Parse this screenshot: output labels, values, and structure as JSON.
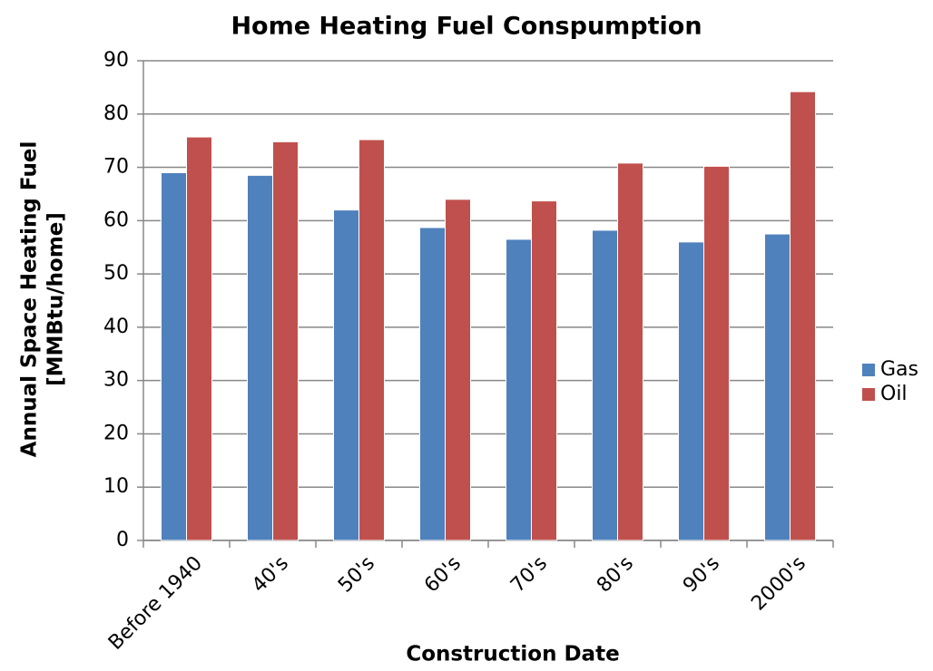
{
  "chart_data": {
    "type": "bar",
    "title": "Home Heating Fuel Conspumption",
    "xlabel": "Construction Date",
    "ylabel": [
      "Annual Space Heating Fuel",
      "[MMBtu/home]"
    ],
    "categories": [
      "Before 1940",
      "40's",
      "50's",
      "60's",
      "70's",
      "80's",
      "90's",
      "2000's"
    ],
    "series": [
      {
        "name": "Gas",
        "color": "#4f81bd",
        "values": [
          69,
          68.5,
          62,
          58.7,
          56.5,
          58.2,
          56,
          57.5
        ]
      },
      {
        "name": "Oil",
        "color": "#c0504d",
        "values": [
          75.7,
          74.8,
          75.2,
          64,
          63.7,
          70.8,
          70.2,
          84.2
        ]
      }
    ],
    "ylim": [
      0,
      90
    ],
    "yticks": [
      0,
      10,
      20,
      30,
      40,
      50,
      60,
      70,
      80,
      90
    ],
    "grid": true,
    "legend": "right"
  }
}
